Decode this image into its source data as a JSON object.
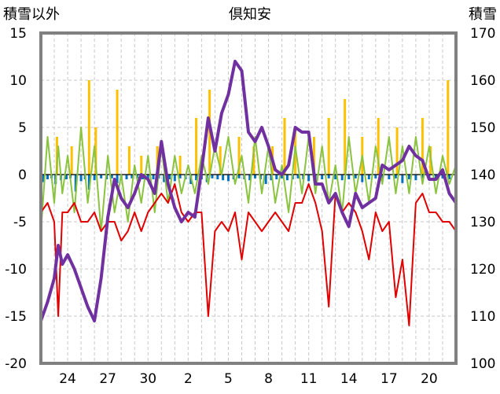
{
  "chart_data": {
    "type": "line",
    "title": "倶知安",
    "left_axis_label": "積雪以外",
    "right_axis_label": "積雪",
    "ylim_left": [
      -20,
      15
    ],
    "ylim_right": [
      100,
      170
    ],
    "left_ticks": [
      "15",
      "10",
      "5",
      "0",
      "-5",
      "-10",
      "-15",
      "-20"
    ],
    "right_ticks": [
      "170",
      "160",
      "150",
      "140",
      "130",
      "120",
      "110",
      "100"
    ],
    "x_ticks": [
      "24",
      "27",
      "30",
      "2",
      "5",
      "8",
      "11",
      "14",
      "17",
      "20"
    ],
    "x_tick_positions_day_index": [
      2,
      5,
      8,
      11,
      14,
      17,
      20,
      23,
      26,
      29
    ],
    "x_range_days": [
      0,
      31
    ],
    "grid": true,
    "colors": {
      "temperature_line": "#e00000",
      "secondary_line": "#8ac43f",
      "snow_depth_line": "#7030a0",
      "snowfall_bars": "#ffc000",
      "precip_bars": "#0070c0",
      "frame": "#808080"
    },
    "series": [
      {
        "axis": "right",
        "color": "#7030a0",
        "x": [
          0,
          0.5,
          1,
          1.3,
          1.6,
          2,
          2.5,
          3,
          3.5,
          4,
          4.5,
          5,
          5.5,
          6,
          6.5,
          7,
          7.5,
          8,
          8.5,
          9,
          9.5,
          10,
          10.5,
          11,
          11.5,
          12,
          12.5,
          13,
          13.5,
          14,
          14.5,
          15,
          15.5,
          16,
          16.5,
          17,
          17.5,
          18,
          18.5,
          19,
          19.5,
          20,
          20.5,
          21,
          21.5,
          22,
          22.5,
          23,
          23.5,
          24,
          24.5,
          25,
          25.5,
          26,
          26.5,
          27,
          27.5,
          28,
          28.5,
          29,
          29.5,
          30,
          30.5,
          31
        ],
        "y": [
          109,
          113,
          118,
          125,
          121,
          123,
          120,
          116,
          112,
          109,
          118,
          131,
          139,
          135,
          133,
          136,
          140,
          139,
          136,
          147,
          138,
          133,
          130,
          132,
          131,
          141,
          152,
          145,
          153,
          157,
          164,
          162,
          149,
          147,
          150,
          146,
          141,
          140,
          142,
          150,
          149,
          149,
          138,
          138,
          134,
          136,
          132,
          129,
          136,
          133,
          134,
          135,
          142,
          141,
          142,
          143,
          146,
          144,
          143,
          139,
          139,
          141,
          136,
          134
        ]
      },
      {
        "axis": "left",
        "color": "#e00000",
        "x": [
          0,
          0.5,
          1,
          1.3,
          1.6,
          2,
          2.5,
          3,
          3.5,
          4,
          4.5,
          5,
          5.5,
          6,
          6.5,
          7,
          7.5,
          8,
          8.5,
          9,
          9.5,
          10,
          10.5,
          11,
          11.5,
          12,
          12.5,
          13,
          13.5,
          14,
          14.5,
          15,
          15.5,
          16,
          16.5,
          17,
          17.5,
          18,
          18.5,
          19,
          19.5,
          20,
          20.5,
          21,
          21.5,
          22,
          22.5,
          23,
          23.5,
          24,
          24.5,
          25,
          25.5,
          26,
          26.5,
          27,
          27.5,
          28,
          28.5,
          29,
          29.5,
          30,
          30.5,
          31
        ],
        "y": [
          -4,
          -3,
          -5,
          -15,
          -4,
          -4,
          -3,
          -5,
          -5,
          -4,
          -6,
          -5,
          -5,
          -7,
          -6,
          -4,
          -6,
          -4,
          -3,
          -2,
          -3,
          -1,
          -4,
          -5,
          -4,
          -4,
          -15,
          -6,
          -5,
          -6,
          -4,
          -9,
          -4,
          -5,
          -6,
          -5,
          -4,
          -5,
          -6,
          -3,
          -3,
          -1,
          -3,
          -6,
          -14,
          -2,
          -4,
          -3,
          -4,
          -6,
          -9,
          -4,
          -6,
          -5,
          -13,
          -9,
          -16,
          -3,
          -2,
          -4,
          -4,
          -5,
          -5,
          -6
        ]
      },
      {
        "axis": "left",
        "color": "#8ac43f",
        "x": [
          0,
          0.5,
          1,
          1.3,
          1.6,
          2,
          2.5,
          3,
          3.5,
          4,
          4.5,
          5,
          5.5,
          6,
          6.5,
          7,
          7.5,
          8,
          8.5,
          9,
          9.5,
          10,
          10.5,
          11,
          11.5,
          12,
          12.5,
          13,
          13.5,
          14,
          14.5,
          15,
          15.5,
          16,
          16.5,
          17,
          17.5,
          18,
          18.5,
          19,
          19.5,
          20,
          20.5,
          21,
          21.5,
          22,
          22.5,
          23,
          23.5,
          24,
          24.5,
          25,
          25.5,
          26,
          26.5,
          27,
          27.5,
          28,
          28.5,
          29,
          29.5,
          30,
          30.5,
          31
        ],
        "y": [
          -6,
          4,
          -3,
          3,
          -2,
          2,
          -4,
          5,
          -3,
          3,
          -6,
          2,
          -4,
          0,
          -5,
          1,
          -3,
          2,
          -4,
          3,
          -3,
          2,
          -2,
          1,
          -2,
          2,
          -1,
          3,
          0,
          4,
          -1,
          2,
          -3,
          4,
          -2,
          3,
          -3,
          1,
          -4,
          3,
          -2,
          4,
          -2,
          3,
          -3,
          1,
          -4,
          4,
          -2,
          2,
          -3,
          3,
          -1,
          4,
          -2,
          3,
          -2,
          4,
          -1,
          3,
          -2,
          2,
          -1,
          1
        ]
      }
    ],
    "bars": [
      {
        "axis": "left",
        "color": "#ffc000",
        "x": [
          1.2,
          2.3,
          3.6,
          4.1,
          5.7,
          6.6,
          7.5,
          8.7,
          10.4,
          11.6,
          12.6,
          13.4,
          14.8,
          15.9,
          17.3,
          18.2,
          19.0,
          20.4,
          21.5,
          22.7,
          24.0,
          25.2,
          26.6,
          28.5,
          29.1,
          30.4
        ],
        "values": [
          4,
          3,
          10,
          5,
          9,
          3,
          2,
          3,
          2,
          6,
          9,
          3,
          4,
          3,
          3,
          6,
          5,
          4,
          6,
          8,
          4,
          6,
          5,
          6,
          3,
          10
        ]
      },
      {
        "axis": "left",
        "color": "#0070c0",
        "x": [
          0.2,
          0.5,
          0.8,
          1.1,
          1.5,
          1.9,
          2.2,
          2.6,
          3.0,
          3.3,
          3.6,
          4.0,
          4.5,
          4.9,
          5.3,
          5.7,
          6.0,
          6.4,
          6.8,
          7.2,
          7.6,
          8.0,
          8.4,
          8.8,
          9.2,
          9.6,
          10.0,
          10.4,
          10.8,
          11.2,
          11.6,
          12.0,
          12.4,
          12.8,
          13.2,
          13.6,
          14.0,
          14.4,
          14.8,
          15.2,
          15.6,
          16.0,
          16.4,
          16.8,
          17.2,
          17.6,
          18.0,
          18.4,
          18.8,
          19.2,
          19.6,
          20.0,
          20.5,
          21.0,
          21.5,
          22.0,
          22.5,
          23.0,
          23.5,
          24.0,
          24.5,
          25.0,
          25.5,
          26.0,
          26.5,
          27.0,
          27.5,
          28.0,
          28.5,
          29.0,
          29.5,
          30.0,
          30.5
        ],
        "values": [
          -0.8,
          -0.5,
          -0.4,
          -1.0,
          -0.6,
          -0.5,
          -0.4,
          -1.8,
          -0.7,
          -0.5,
          -1.6,
          -0.6,
          -0.4,
          -0.5,
          -0.4,
          -0.9,
          -0.6,
          -0.5,
          -0.4,
          -0.4,
          -0.5,
          -0.6,
          -0.5,
          -0.4,
          -0.8,
          -0.5,
          -0.7,
          -0.4,
          -0.5,
          -1.0,
          -0.6,
          -0.5,
          -0.8,
          -0.4,
          -0.5,
          -0.6,
          -0.7,
          -0.5,
          -0.4,
          -0.5,
          -0.6,
          -0.4,
          -0.5,
          -1.0,
          -0.6,
          -0.5,
          -0.4,
          -0.6,
          -0.5,
          -0.4,
          -0.5,
          -0.7,
          -0.6,
          -0.5,
          -0.4,
          -0.5,
          -0.6,
          -0.5,
          -0.4,
          -0.8,
          -0.5,
          -0.4,
          -0.6,
          -0.5,
          -0.4,
          -0.9,
          -0.5,
          -0.6,
          -0.4,
          -0.5,
          -0.6,
          -0.4,
          -0.5
        ]
      }
    ]
  }
}
